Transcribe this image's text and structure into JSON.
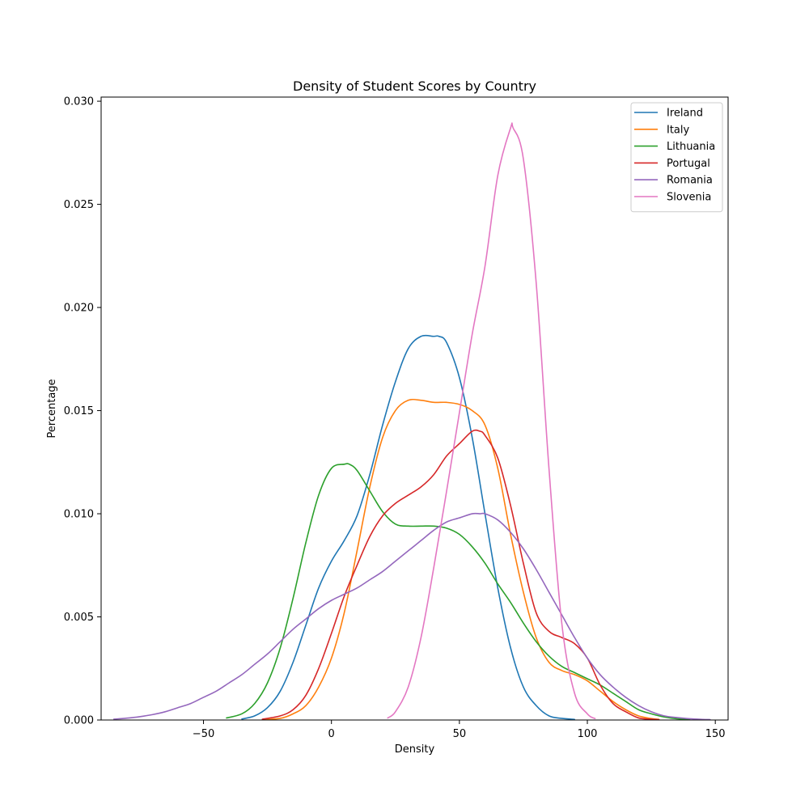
{
  "chart_data": {
    "type": "line",
    "title": "Density of Student Scores by Country",
    "xlabel": "Density",
    "ylabel": "Percentage",
    "xlim": [
      -90,
      155
    ],
    "ylim": [
      0,
      0.0302
    ],
    "xticks": [
      -50,
      0,
      50,
      100,
      150
    ],
    "xtick_labels": [
      "−50",
      "0",
      "50",
      "100",
      "150"
    ],
    "yticks": [
      0,
      0.005,
      0.01,
      0.015,
      0.02,
      0.025,
      0.03
    ],
    "ytick_labels": [
      "0.000",
      "0.005",
      "0.010",
      "0.015",
      "0.020",
      "0.025",
      "0.030"
    ],
    "grid": false,
    "legend_position": "top-right",
    "series": [
      {
        "name": "Ireland",
        "color": "#1f77b4",
        "x": [
          -35,
          -30,
          -25,
          -20,
          -15,
          -10,
          -5,
          0,
          5,
          10,
          15,
          20,
          25,
          30,
          35,
          40,
          42,
          45,
          50,
          55,
          60,
          65,
          70,
          75,
          80,
          85,
          90,
          95
        ],
        "y": [
          5e-05,
          0.0002,
          0.0006,
          0.0014,
          0.0028,
          0.0046,
          0.0064,
          0.0077,
          0.0087,
          0.0099,
          0.0119,
          0.0143,
          0.0164,
          0.018,
          0.0186,
          0.0186,
          0.0186,
          0.0183,
          0.0166,
          0.0137,
          0.01,
          0.0064,
          0.0035,
          0.0016,
          0.0007,
          0.0002,
          8e-05,
          3e-05
        ]
      },
      {
        "name": "Italy",
        "color": "#ff7f0e",
        "x": [
          -27,
          -20,
          -15,
          -10,
          -5,
          0,
          5,
          10,
          15,
          20,
          25,
          30,
          35,
          40,
          45,
          50,
          55,
          60,
          65,
          70,
          75,
          80,
          85,
          90,
          95,
          100,
          105,
          110,
          115,
          120,
          125,
          128
        ],
        "y": [
          2e-05,
          8e-05,
          0.0003,
          0.0007,
          0.0016,
          0.003,
          0.0052,
          0.0082,
          0.0113,
          0.0137,
          0.015,
          0.0155,
          0.0155,
          0.0154,
          0.0154,
          0.0153,
          0.015,
          0.0143,
          0.0122,
          0.009,
          0.0062,
          0.004,
          0.0028,
          0.0024,
          0.0022,
          0.0019,
          0.0014,
          0.0009,
          0.0005,
          0.0002,
          7e-05,
          3e-05
        ]
      },
      {
        "name": "Lithuania",
        "color": "#2ca02c",
        "x": [
          -41,
          -35,
          -30,
          -25,
          -20,
          -15,
          -10,
          -5,
          0,
          5,
          7,
          10,
          15,
          20,
          25,
          30,
          35,
          40,
          45,
          50,
          55,
          60,
          65,
          70,
          75,
          80,
          85,
          90,
          95,
          100,
          105,
          110,
          115,
          120,
          125,
          130,
          135,
          140
        ],
        "y": [
          0.0001,
          0.0003,
          0.0008,
          0.0018,
          0.0035,
          0.0059,
          0.0086,
          0.0109,
          0.0122,
          0.0124,
          0.0124,
          0.0121,
          0.0111,
          0.0101,
          0.0095,
          0.0094,
          0.0094,
          0.0094,
          0.0093,
          0.009,
          0.0084,
          0.0076,
          0.0066,
          0.0057,
          0.0047,
          0.0038,
          0.0031,
          0.0026,
          0.0023,
          0.002,
          0.0017,
          0.0013,
          0.0009,
          0.0005,
          0.0003,
          0.00015,
          6e-05,
          2e-05
        ]
      },
      {
        "name": "Portugal",
        "color": "#d62728",
        "x": [
          -27,
          -20,
          -15,
          -10,
          -5,
          0,
          5,
          10,
          15,
          20,
          25,
          30,
          35,
          40,
          45,
          50,
          55,
          58,
          60,
          65,
          70,
          75,
          80,
          85,
          90,
          95,
          100,
          105,
          110,
          115,
          120,
          125,
          128
        ],
        "y": [
          4e-05,
          0.0002,
          0.0005,
          0.0012,
          0.0025,
          0.0042,
          0.006,
          0.0075,
          0.0089,
          0.0099,
          0.0105,
          0.0109,
          0.0113,
          0.0119,
          0.0128,
          0.0134,
          0.014,
          0.014,
          0.0138,
          0.0127,
          0.0104,
          0.0076,
          0.0052,
          0.0043,
          0.004,
          0.0037,
          0.003,
          0.0017,
          0.0008,
          0.0004,
          0.0001,
          4e-05,
          2e-05
        ]
      },
      {
        "name": "Romania",
        "color": "#9467bd",
        "x": [
          -85,
          -80,
          -75,
          -70,
          -65,
          -60,
          -55,
          -50,
          -45,
          -40,
          -35,
          -30,
          -25,
          -20,
          -15,
          -10,
          -5,
          0,
          5,
          10,
          15,
          20,
          25,
          30,
          35,
          40,
          45,
          50,
          55,
          58,
          60,
          65,
          70,
          75,
          80,
          85,
          90,
          95,
          100,
          105,
          110,
          115,
          120,
          125,
          130,
          135,
          140,
          145,
          148
        ],
        "y": [
          4e-05,
          9e-05,
          0.00016,
          0.00026,
          0.0004,
          0.0006,
          0.0008,
          0.0011,
          0.0014,
          0.0018,
          0.0022,
          0.0027,
          0.0032,
          0.0038,
          0.0044,
          0.0049,
          0.0054,
          0.0058,
          0.0061,
          0.0064,
          0.0068,
          0.0072,
          0.0077,
          0.0082,
          0.0087,
          0.0092,
          0.0096,
          0.0098,
          0.01,
          0.01,
          0.01,
          0.0097,
          0.0091,
          0.0083,
          0.0073,
          0.0062,
          0.0051,
          0.004,
          0.003,
          0.0022,
          0.0016,
          0.0011,
          0.0007,
          0.0004,
          0.0002,
          0.00012,
          6e-05,
          3e-05,
          2e-05
        ]
      },
      {
        "name": "Slovenia",
        "color": "#e377c2",
        "x": [
          22,
          25,
          30,
          35,
          40,
          45,
          50,
          55,
          60,
          65,
          70,
          71,
          75,
          80,
          85,
          90,
          95,
          100,
          103
        ],
        "y": [
          0.0001,
          0.0004,
          0.0016,
          0.004,
          0.0074,
          0.0111,
          0.0149,
          0.0187,
          0.022,
          0.0264,
          0.0287,
          0.0287,
          0.0272,
          0.0212,
          0.0122,
          0.0047,
          0.0013,
          0.0003,
          7e-05
        ]
      }
    ]
  }
}
